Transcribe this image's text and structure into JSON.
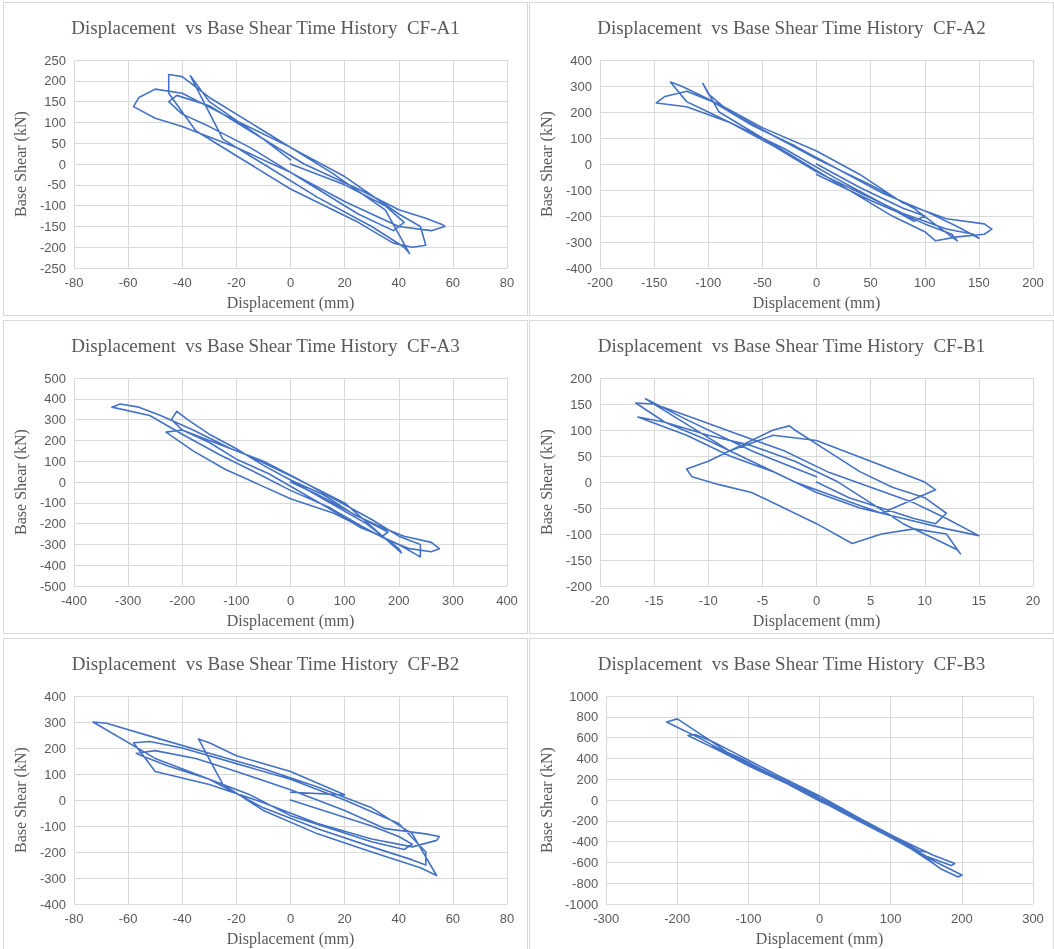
{
  "chart_data": [
    {
      "type": "line",
      "title": "Displacement  vs Base Shear Time History  CF-A1",
      "xlabel": "Displacement (mm)",
      "ylabel": "Base Shear (kN)",
      "xlim": [
        -80,
        80
      ],
      "xticks": [
        -80,
        -60,
        -40,
        -20,
        0,
        20,
        40,
        60,
        80
      ],
      "ylim": [
        -250,
        250
      ],
      "yticks": [
        -250,
        -200,
        -150,
        -100,
        -50,
        0,
        50,
        100,
        150,
        200,
        250
      ],
      "grid": true,
      "marker": "none",
      "line_style": "solid",
      "series": [
        {
          "color": "#4472c4",
          "x": [
            0,
            20,
            35,
            42,
            38,
            25,
            10,
            -15,
            -30,
            -40,
            -45,
            -42,
            -30,
            -15,
            5,
            25,
            40,
            50,
            56,
            57,
            52,
            40,
            20,
            0,
            -20,
            -40,
            -50,
            -58,
            -56,
            -50,
            -40,
            -25,
            0,
            20,
            40,
            48,
            50,
            45,
            38,
            25,
            0,
            -20,
            -35,
            -45,
            -45,
            -40,
            -30,
            -10,
            15,
            35,
            44,
            42,
            30,
            10,
            -10,
            -25,
            -37,
            -30,
            -10,
            0
          ],
          "values": [
            0,
            -50,
            -100,
            -140,
            -160,
            -120,
            -60,
            40,
            90,
            120,
            150,
            165,
            140,
            80,
            0,
            -60,
            -110,
            -130,
            -145,
            -150,
            -160,
            -150,
            -90,
            -20,
            40,
            90,
            110,
            138,
            160,
            180,
            170,
            120,
            40,
            -30,
            -120,
            -150,
            -195,
            -200,
            -190,
            -140,
            -60,
            20,
            80,
            170,
            215,
            210,
            160,
            80,
            -20,
            -110,
            -215,
            -200,
            -150,
            -80,
            0,
            60,
            212,
            150,
            60,
            10
          ]
        }
      ]
    },
    {
      "type": "line",
      "title": "Displacement  vs Base Shear Time History  CF-A2",
      "xlabel": "Displacement (mm)",
      "ylabel": "Base Shear (kN)",
      "xlim": [
        -200,
        200
      ],
      "xticks": [
        -200,
        -150,
        -100,
        -50,
        0,
        50,
        100,
        150,
        200
      ],
      "ylim": [
        -400,
        400
      ],
      "yticks": [
        -400,
        -300,
        -200,
        -100,
        0,
        100,
        200,
        300,
        400
      ],
      "grid": true,
      "marker": "none",
      "line_style": "solid",
      "series": [
        {
          "color": "#4472c4",
          "x": [
            0,
            40,
            80,
            100,
            90,
            60,
            20,
            -30,
            -70,
            -100,
            -120,
            -135,
            -125,
            -100,
            -60,
            -20,
            20,
            60,
            100,
            130,
            150,
            145,
            120,
            80,
            40,
            0,
            -40,
            -80,
            -120,
            -148,
            -140,
            -120,
            -90,
            -50,
            0,
            40,
            80,
            120,
            155,
            162,
            155,
            130,
            110,
            100,
            70,
            30,
            -10,
            -50,
            -90,
            -105,
            -100,
            -80,
            -40,
            0,
            50,
            90,
            130,
            125,
            100,
            50,
            0
          ],
          "values": [
            0,
            -90,
            -170,
            -200,
            -220,
            -150,
            -60,
            60,
            140,
            200,
            240,
            315,
            300,
            250,
            150,
            70,
            -20,
            -110,
            -180,
            -240,
            -285,
            -270,
            -250,
            -190,
            -110,
            -30,
            70,
            160,
            220,
            235,
            260,
            280,
            230,
            140,
            50,
            -40,
            -150,
            -210,
            -230,
            -250,
            -270,
            -280,
            -295,
            -260,
            -200,
            -100,
            0,
            100,
            200,
            310,
            270,
            200,
            110,
            20,
            -80,
            -170,
            -295,
            -270,
            -230,
            -140,
            -40
          ]
        }
      ]
    },
    {
      "type": "line",
      "title": "Displacement  vs Base Shear Time History  CF-A3",
      "xlabel": "Displacement (mm)",
      "ylabel": "Base Shear (kN)",
      "xlim": [
        -400,
        400
      ],
      "xticks": [
        -400,
        -300,
        -200,
        -100,
        0,
        100,
        200,
        300,
        400
      ],
      "ylim": [
        -500,
        500
      ],
      "yticks": [
        -500,
        -400,
        -300,
        -200,
        -100,
        0,
        100,
        200,
        300,
        400,
        500
      ],
      "grid": true,
      "marker": "none",
      "line_style": "solid",
      "series": [
        {
          "color": "#4472c4",
          "x": [
            0,
            50,
            100,
            150,
            180,
            170,
            130,
            80,
            20,
            -40,
            -100,
            -150,
            -200,
            -220,
            -210,
            -190,
            -150,
            -100,
            -50,
            0,
            60,
            120,
            170,
            210,
            260,
            275,
            260,
            220,
            180,
            130,
            70,
            0,
            -60,
            -130,
            -200,
            -260,
            -330,
            -315,
            -280,
            -240,
            -180,
            -110,
            -50,
            10,
            80,
            150,
            200,
            240,
            240,
            230,
            200,
            150,
            80,
            0,
            -60,
            -120,
            -180,
            -230,
            -200,
            -150,
            -80,
            0,
            100,
            205,
            200,
            140,
            60,
            0
          ],
          "values": [
            0,
            -60,
            -130,
            -200,
            -240,
            -260,
            -220,
            -140,
            -50,
            40,
            110,
            190,
            250,
            300,
            340,
            300,
            230,
            160,
            80,
            10,
            -60,
            -160,
            -220,
            -260,
            -290,
            -320,
            -335,
            -320,
            -280,
            -210,
            -120,
            -40,
            40,
            130,
            230,
            320,
            360,
            375,
            360,
            320,
            250,
            160,
            100,
            20,
            -80,
            -180,
            -260,
            -300,
            -360,
            -345,
            -300,
            -240,
            -150,
            -80,
            -10,
            60,
            150,
            240,
            250,
            200,
            130,
            30,
            -100,
            -340,
            -320,
            -200,
            -80,
            10
          ]
        }
      ]
    },
    {
      "type": "line",
      "title": "Displacement  vs Base Shear Time History  CF-B1",
      "xlabel": "Displacement (mm)",
      "ylabel": "Base Shear (kN)",
      "xlim": [
        -20,
        20
      ],
      "xticks": [
        -20,
        -15,
        -10,
        -5,
        0,
        5,
        10,
        15,
        20
      ],
      "ylim": [
        -200,
        200
      ],
      "yticks": [
        -200,
        -150,
        -100,
        -50,
        0,
        50,
        100,
        150,
        200
      ],
      "grid": true,
      "marker": "none",
      "line_style": "solid",
      "series": [
        {
          "color": "#4472c4",
          "x": [
            0,
            3,
            6,
            9,
            11,
            12,
            10,
            7,
            4,
            1,
            -2,
            -2.5,
            -4,
            -6,
            -8,
            -10,
            -12,
            -11.5,
            -9,
            -6,
            -3,
            0,
            3.3,
            6,
            9,
            12,
            13.3,
            13,
            11,
            8,
            5,
            2,
            -2,
            -6,
            -10,
            -14,
            -16.7,
            -15,
            -11,
            -7,
            -3,
            1,
            5,
            9,
            12,
            15,
            12,
            8,
            4,
            0,
            -4,
            -8,
            -12,
            -16.5,
            -14,
            -10,
            -6,
            -2,
            2,
            6,
            11,
            10,
            5,
            0,
            -4,
            -8,
            -15.8,
            -12,
            -6,
            0
          ],
          "values": [
            0,
            -30,
            -50,
            -70,
            -80,
            -60,
            -30,
            -10,
            20,
            60,
            100,
            108,
            100,
            80,
            60,
            40,
            25,
            10,
            -5,
            -20,
            -50,
            -80,
            -118,
            -100,
            -90,
            -100,
            -138,
            -130,
            -110,
            -80,
            -40,
            0,
            40,
            70,
            90,
            115,
            152,
            150,
            120,
            90,
            60,
            20,
            -10,
            -40,
            -70,
            -103,
            -90,
            -70,
            -50,
            -20,
            20,
            50,
            90,
            125,
            115,
            80,
            40,
            0,
            -30,
            -60,
            -15,
            0,
            40,
            80,
            90,
            60,
            160,
            120,
            60,
            10
          ]
        }
      ]
    },
    {
      "type": "line",
      "title": "Displacement  vs Base Shear Time History  CF-B2",
      "xlabel": "Displacement (mm)",
      "ylabel": "Base Shear (kN)",
      "xlim": [
        -80,
        80
      ],
      "xticks": [
        -80,
        -60,
        -40,
        -20,
        0,
        20,
        40,
        60,
        80
      ],
      "ylim": [
        -400,
        400
      ],
      "yticks": [
        -400,
        -300,
        -200,
        -100,
        0,
        100,
        200,
        300,
        400
      ],
      "grid": true,
      "marker": "none",
      "line_style": "solid",
      "series": [
        {
          "color": "#4472c4",
          "x": [
            0,
            15,
            30,
            40,
            45,
            42,
            30,
            15,
            0,
            -15,
            -30,
            -45,
            -55,
            -57,
            -50,
            -35,
            -20,
            0,
            20,
            35,
            50,
            55,
            54,
            45,
            30,
            10,
            -10,
            -30,
            -50,
            -58,
            -52,
            -40,
            -20,
            0,
            20,
            40,
            50,
            50,
            45,
            30,
            10,
            -10,
            -30,
            -50,
            -73,
            -68,
            -50,
            -30,
            -10,
            10,
            30,
            45,
            54,
            48,
            30,
            10,
            -10,
            -25,
            -34,
            -30,
            -20,
            0,
            20,
            0
          ],
          "values": [
            0,
            -50,
            -100,
            -140,
            -170,
            -190,
            -160,
            -110,
            -60,
            20,
            80,
            130,
            170,
            180,
            190,
            160,
            110,
            40,
            -40,
            -110,
            -130,
            -140,
            -155,
            -180,
            -150,
            -90,
            -10,
            60,
            110,
            220,
            225,
            200,
            140,
            80,
            0,
            -90,
            -200,
            -250,
            -230,
            -180,
            -110,
            -30,
            80,
            160,
            300,
            295,
            240,
            180,
            120,
            50,
            -30,
            -130,
            -290,
            -260,
            -200,
            -130,
            -40,
            60,
            235,
            220,
            170,
            110,
            20,
            30
          ]
        }
      ]
    },
    {
      "type": "line",
      "title": "Displacement  vs Base Shear Time History  CF-B3",
      "xlabel": "Displacement (mm)",
      "ylabel": "Base Shear (kN)",
      "xlim": [
        -300,
        300
      ],
      "xticks": [
        -300,
        -200,
        -100,
        0,
        100,
        200,
        300
      ],
      "ylim": [
        -1000,
        1000
      ],
      "yticks": [
        -1000,
        -800,
        -600,
        -400,
        -200,
        0,
        200,
        400,
        600,
        800,
        1000
      ],
      "grid": true,
      "marker": "none",
      "line_style": "solid",
      "series": [
        {
          "color": "#4472c4",
          "x": [
            0,
            40,
            80,
            120,
            150,
            140,
            100,
            50,
            0,
            -50,
            -100,
            -140,
            -185,
            -175,
            -150,
            -110,
            -60,
            0,
            60,
            110,
            160,
            190,
            185,
            150,
            100,
            40,
            -20,
            -80,
            -130,
            -160,
            -200,
            -215,
            -200,
            -170,
            -130,
            -80,
            -20,
            40,
            100,
            150,
            200,
            195,
            170,
            158,
            120,
            60,
            0,
            -60,
            -120,
            -150,
            -110,
            -50,
            0
          ],
          "values": [
            0,
            -140,
            -270,
            -400,
            -500,
            -490,
            -340,
            -160,
            10,
            170,
            330,
            470,
            620,
            630,
            560,
            420,
            240,
            40,
            -190,
            -370,
            -530,
            -610,
            -630,
            -540,
            -350,
            -120,
            90,
            290,
            460,
            600,
            780,
            750,
            700,
            600,
            450,
            280,
            70,
            -150,
            -360,
            -550,
            -720,
            -740,
            -660,
            -600,
            -430,
            -200,
            -10,
            210,
            420,
            520,
            400,
            180,
            40
          ]
        }
      ]
    }
  ]
}
